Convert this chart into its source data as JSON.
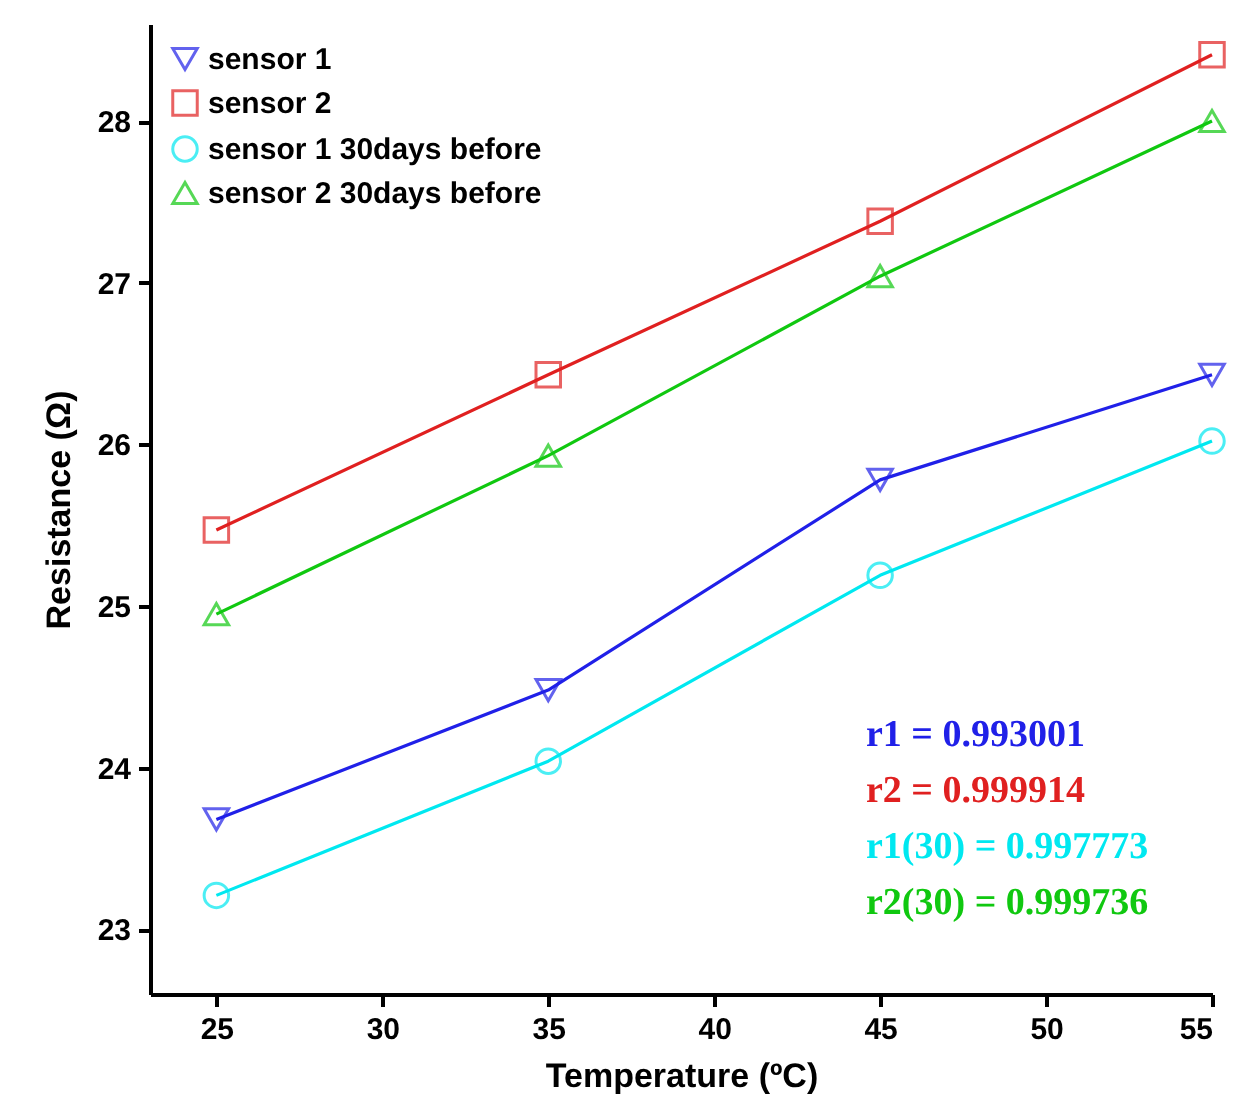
{
  "chart_data": {
    "type": "line",
    "xlabel": "Temperature (ºC)",
    "ylabel": "Resistance (Ω)",
    "x": [
      25,
      35,
      45,
      55
    ],
    "series": [
      {
        "name": "sensor 1",
        "color": "#2020e8",
        "marker": "triangle-down",
        "values": [
          23.68,
          24.48,
          25.78,
          26.43
        ]
      },
      {
        "name": "sensor 2",
        "color": "#e02020",
        "marker": "square",
        "values": [
          25.47,
          26.43,
          27.38,
          28.41
        ]
      },
      {
        "name": "sensor 1  30days before",
        "color": "#00e8f0",
        "marker": "circle",
        "values": [
          23.21,
          24.04,
          25.19,
          26.02
        ]
      },
      {
        "name": "sensor 2  30days before",
        "color": "#10c810",
        "marker": "triangle",
        "values": [
          24.95,
          25.93,
          27.04,
          28.0
        ]
      }
    ],
    "xlim": [
      23,
      55
    ],
    "xticks": [
      25,
      30,
      35,
      40,
      45,
      50,
      55
    ],
    "ylim": [
      22.6,
      28.6
    ],
    "yticks": [
      23,
      24,
      25,
      26,
      27,
      28
    ],
    "grid": false,
    "legend": "top left",
    "line_style": "solid",
    "annotations": [
      "r1 = 0.993001",
      "r2 = 0.999914",
      "r1(30) = 0.997773",
      "r2(30) = 0.999736"
    ]
  }
}
